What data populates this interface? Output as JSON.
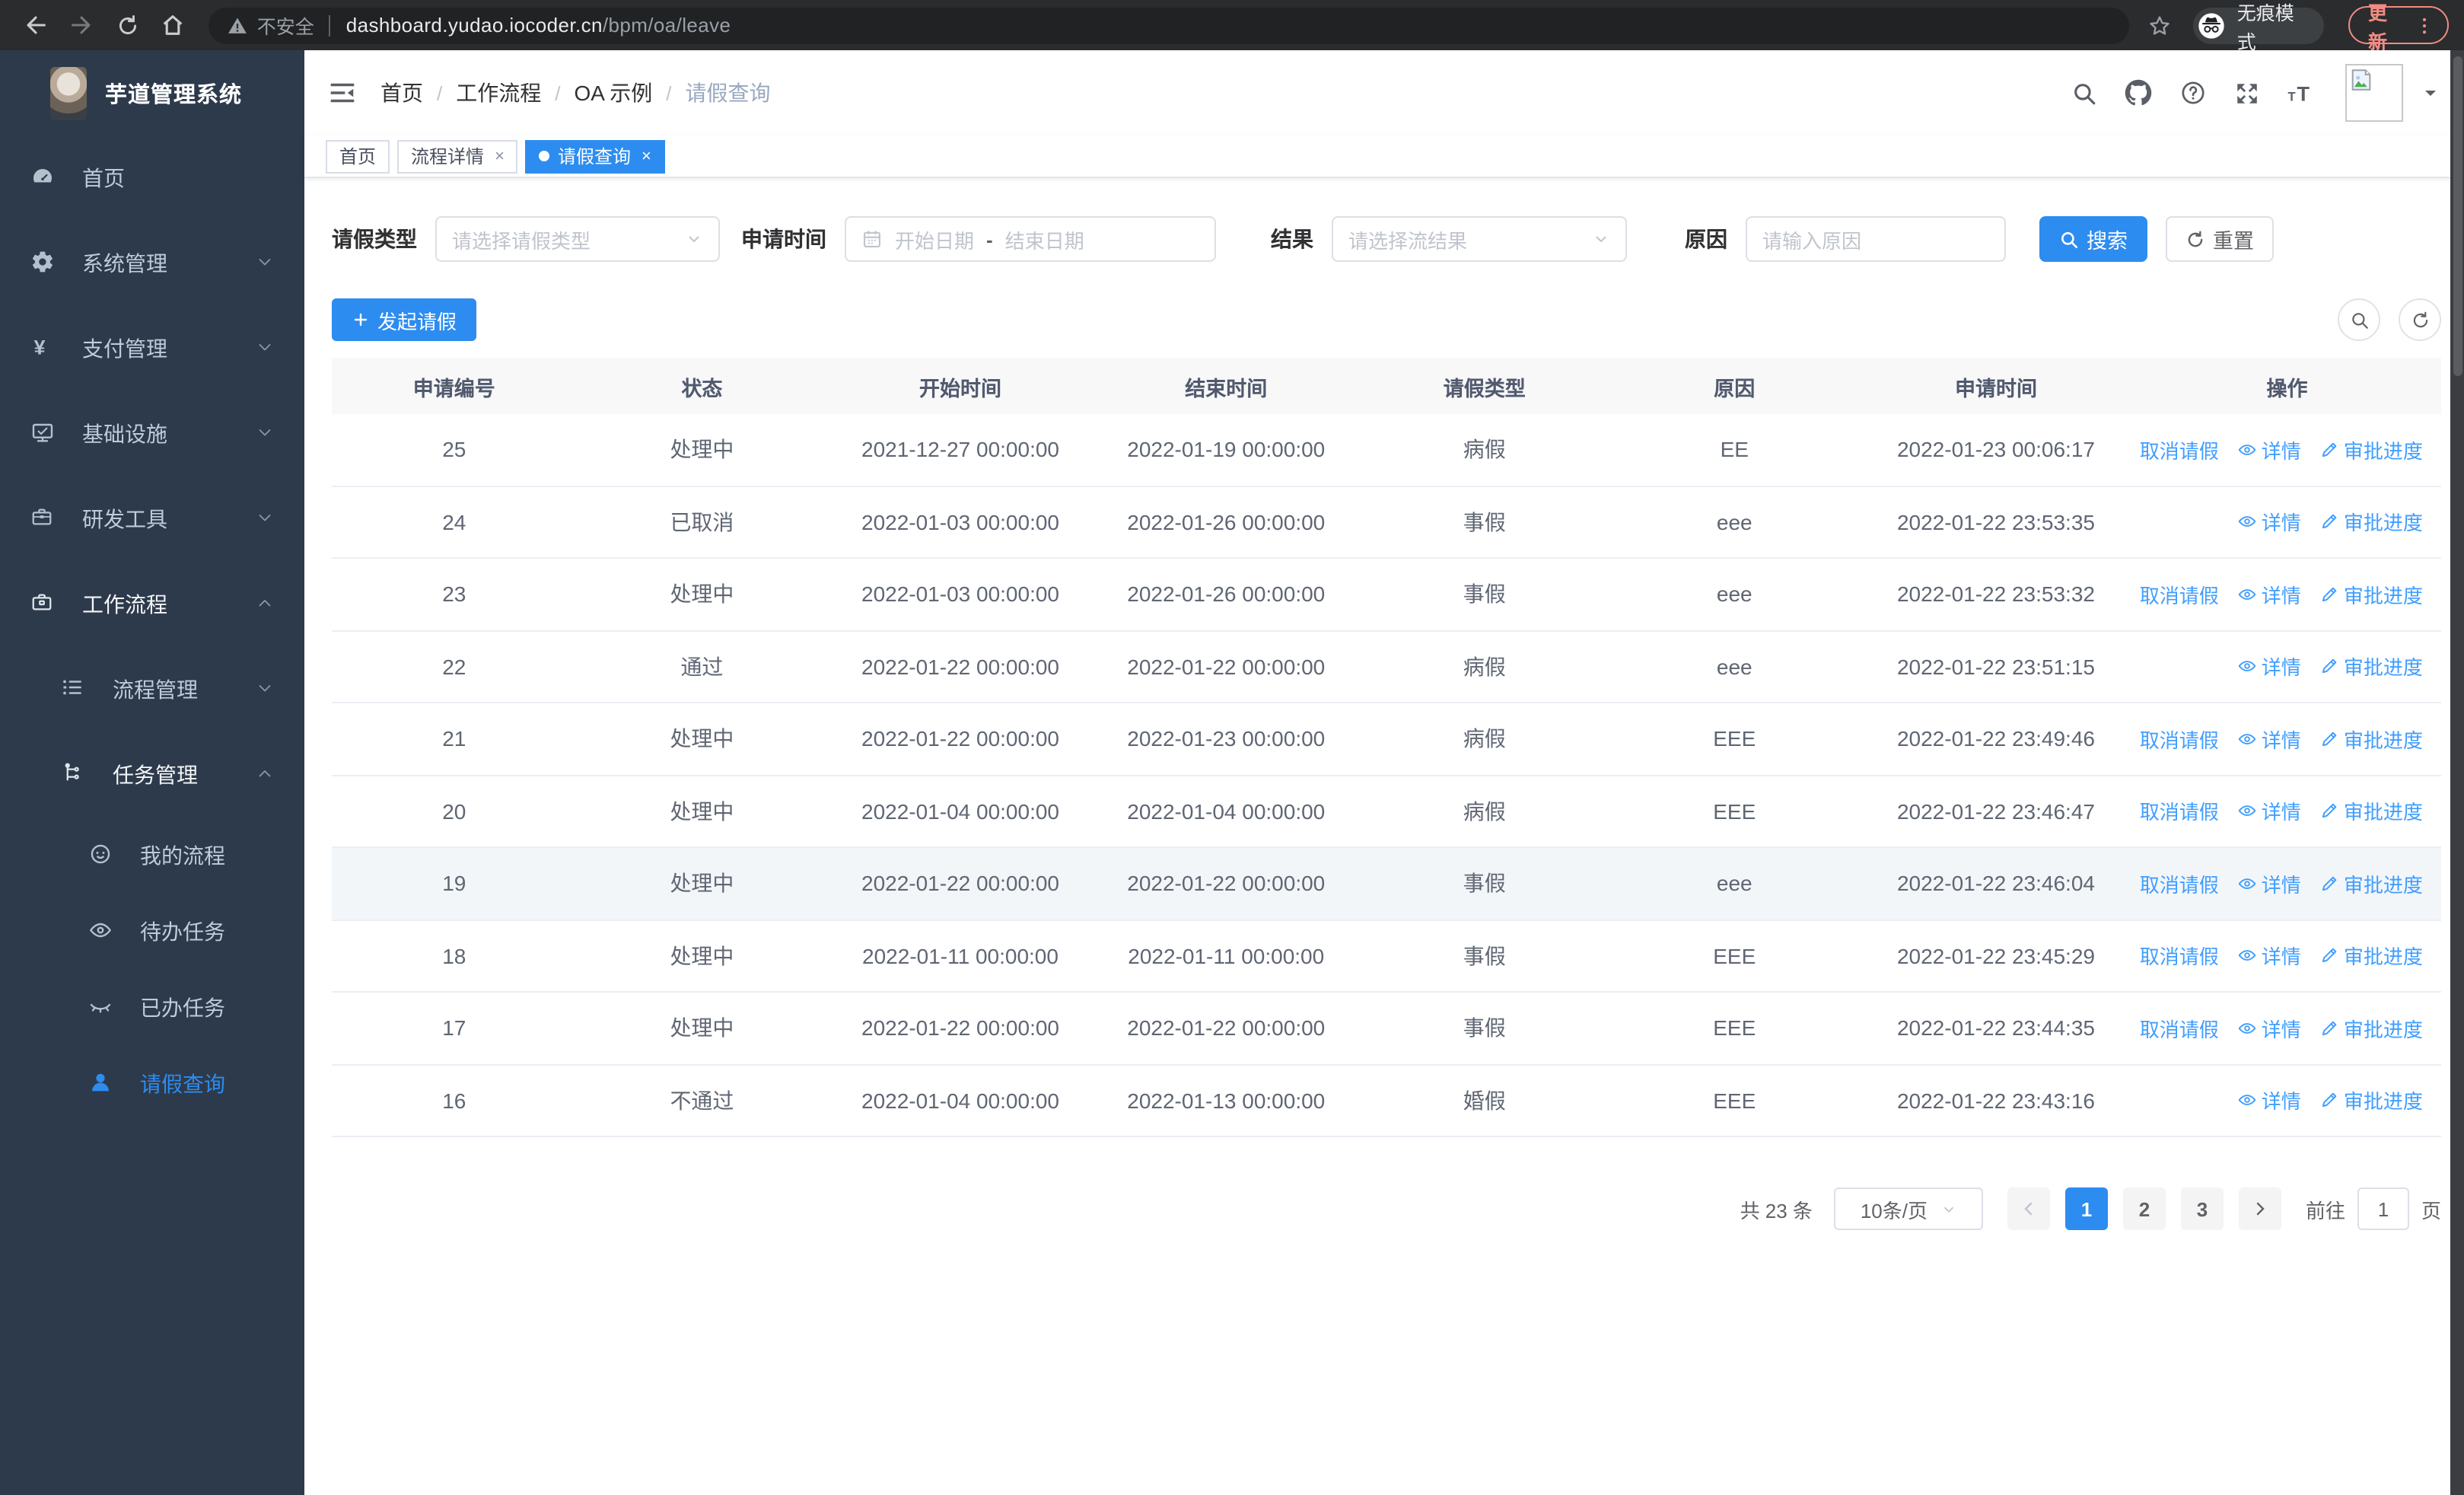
{
  "browser": {
    "security_label": "不安全",
    "url_host": "dashboard.yudao.iocoder.cn",
    "url_path": "/bpm/oa/leave",
    "incognito_label": "无痕模式",
    "update_label": "更新"
  },
  "app": {
    "logo_title": "芋道管理系统",
    "breadcrumb": [
      "首页",
      "工作流程",
      "OA 示例",
      "请假查询"
    ]
  },
  "sidebar": {
    "items": [
      {
        "slug": "home",
        "label": "首页",
        "icon": "gauge",
        "level": 1
      },
      {
        "slug": "system-management",
        "label": "系统管理",
        "icon": "gear",
        "level": 1,
        "arrow": "down"
      },
      {
        "slug": "payment-management",
        "label": "支付管理",
        "icon": "yen",
        "level": 1,
        "arrow": "down"
      },
      {
        "slug": "infrastructure",
        "label": "基础设施",
        "icon": "monitor",
        "level": 1,
        "arrow": "down"
      },
      {
        "slug": "dev-tools",
        "label": "研发工具",
        "icon": "toolbox",
        "level": 1,
        "arrow": "down"
      },
      {
        "slug": "workflow",
        "label": "工作流程",
        "icon": "briefcase",
        "level": 1,
        "arrow": "up",
        "open": true
      },
      {
        "slug": "process-management",
        "label": "流程管理",
        "icon": "flow-list",
        "level": 2,
        "arrow": "down"
      },
      {
        "slug": "task-management",
        "label": "任务管理",
        "icon": "org-tree",
        "level": 2,
        "arrow": "up",
        "open": true
      },
      {
        "slug": "my-process",
        "label": "我的流程",
        "icon": "face",
        "level": 3
      },
      {
        "slug": "todo-tasks",
        "label": "待办任务",
        "icon": "eye",
        "level": 3
      },
      {
        "slug": "done-tasks",
        "label": "已办任务",
        "icon": "eye-closed",
        "level": 3
      },
      {
        "slug": "leave-query",
        "label": "请假查询",
        "icon": "user",
        "level": 3,
        "active": true
      }
    ]
  },
  "tabs": [
    {
      "slug": "home",
      "label": "首页",
      "closable": false,
      "active": false
    },
    {
      "slug": "process-detail",
      "label": "流程详情",
      "closable": true,
      "active": false
    },
    {
      "slug": "leave-query",
      "label": "请假查询",
      "closable": true,
      "active": true
    }
  ],
  "filters": {
    "leave_type_label": "请假类型",
    "leave_type_placeholder": "请选择请假类型",
    "apply_time_label": "申请时间",
    "start_date_placeholder": "开始日期",
    "range_separator": "-",
    "end_date_placeholder": "结束日期",
    "result_label": "结果",
    "result_placeholder": "请选择流结果",
    "reason_label": "原因",
    "reason_placeholder": "请输入原因",
    "search_label": "搜索",
    "reset_label": "重置"
  },
  "toolbar": {
    "create_label": "发起请假"
  },
  "table": {
    "columns": [
      "申请编号",
      "状态",
      "开始时间",
      "结束时间",
      "请假类型",
      "原因",
      "申请时间",
      "操作"
    ],
    "action_labels": {
      "cancel": "取消请假",
      "detail": "详情",
      "progress": "审批进度"
    },
    "rows": [
      {
        "id": "25",
        "status": "处理中",
        "start": "2021-12-27 00:00:00",
        "end": "2022-01-19 00:00:00",
        "type": "病假",
        "reason": "EE",
        "apply_time": "2022-01-23 00:06:17",
        "actions": [
          "cancel",
          "detail",
          "progress"
        ]
      },
      {
        "id": "24",
        "status": "已取消",
        "start": "2022-01-03 00:00:00",
        "end": "2022-01-26 00:00:00",
        "type": "事假",
        "reason": "eee",
        "apply_time": "2022-01-22 23:53:35",
        "actions": [
          "detail",
          "progress"
        ]
      },
      {
        "id": "23",
        "status": "处理中",
        "start": "2022-01-03 00:00:00",
        "end": "2022-01-26 00:00:00",
        "type": "事假",
        "reason": "eee",
        "apply_time": "2022-01-22 23:53:32",
        "actions": [
          "cancel",
          "detail",
          "progress"
        ]
      },
      {
        "id": "22",
        "status": "通过",
        "start": "2022-01-22 00:00:00",
        "end": "2022-01-22 00:00:00",
        "type": "病假",
        "reason": "eee",
        "apply_time": "2022-01-22 23:51:15",
        "actions": [
          "detail",
          "progress"
        ]
      },
      {
        "id": "21",
        "status": "处理中",
        "start": "2022-01-22 00:00:00",
        "end": "2022-01-23 00:00:00",
        "type": "病假",
        "reason": "EEE",
        "apply_time": "2022-01-22 23:49:46",
        "actions": [
          "cancel",
          "detail",
          "progress"
        ]
      },
      {
        "id": "20",
        "status": "处理中",
        "start": "2022-01-04 00:00:00",
        "end": "2022-01-04 00:00:00",
        "type": "病假",
        "reason": "EEE",
        "apply_time": "2022-01-22 23:46:47",
        "actions": [
          "cancel",
          "detail",
          "progress"
        ]
      },
      {
        "id": "19",
        "status": "处理中",
        "start": "2022-01-22 00:00:00",
        "end": "2022-01-22 00:00:00",
        "type": "事假",
        "reason": "eee",
        "apply_time": "2022-01-22 23:46:04",
        "actions": [
          "cancel",
          "detail",
          "progress"
        ],
        "hovered": true
      },
      {
        "id": "18",
        "status": "处理中",
        "start": "2022-01-11 00:00:00",
        "end": "2022-01-11 00:00:00",
        "type": "事假",
        "reason": "EEE",
        "apply_time": "2022-01-22 23:45:29",
        "actions": [
          "cancel",
          "detail",
          "progress"
        ]
      },
      {
        "id": "17",
        "status": "处理中",
        "start": "2022-01-22 00:00:00",
        "end": "2022-01-22 00:00:00",
        "type": "事假",
        "reason": "EEE",
        "apply_time": "2022-01-22 23:44:35",
        "actions": [
          "cancel",
          "detail",
          "progress"
        ]
      },
      {
        "id": "16",
        "status": "不通过",
        "start": "2022-01-04 00:00:00",
        "end": "2022-01-13 00:00:00",
        "type": "婚假",
        "reason": "EEE",
        "apply_time": "2022-01-22 23:43:16",
        "actions": [
          "detail",
          "progress"
        ]
      }
    ]
  },
  "pagination": {
    "total_label": "共 23 条",
    "page_size_label": "10条/页",
    "pages": [
      "1",
      "2",
      "3"
    ],
    "current_page": "1",
    "goto_label": "前往",
    "goto_value": "1",
    "goto_suffix": "页"
  },
  "colors": {
    "accent": "#2d8cf0",
    "sidebar_bg": "#2d3a4b",
    "link_blue": "#409eff"
  }
}
